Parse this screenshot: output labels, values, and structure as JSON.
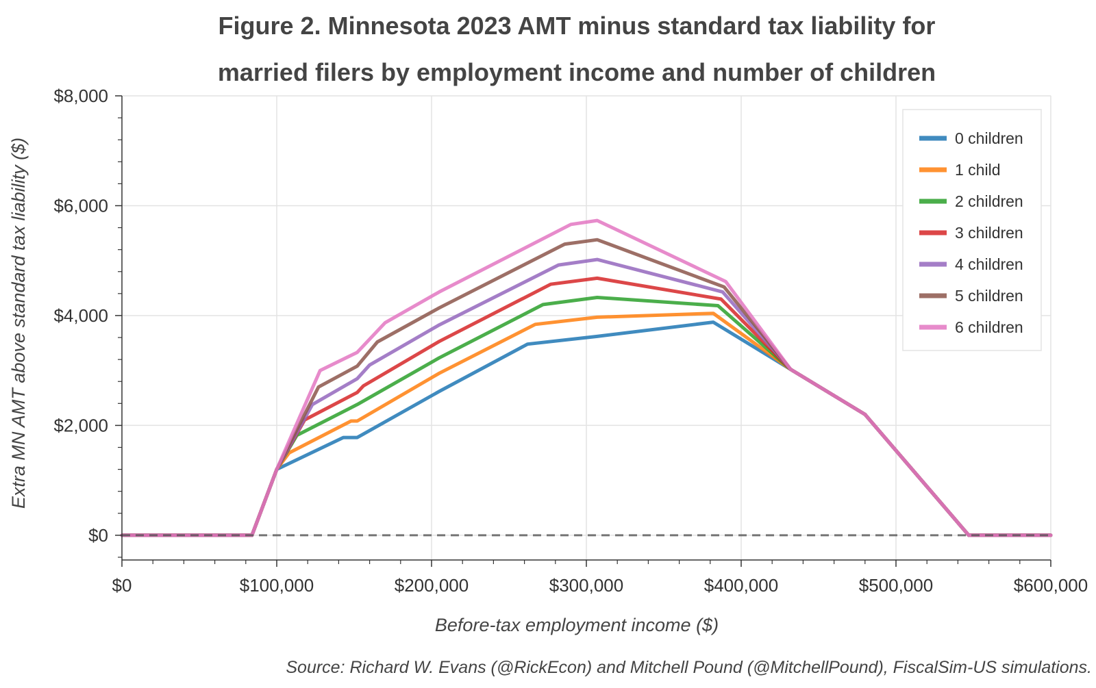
{
  "chart_data": {
    "type": "line",
    "title_lines": [
      "Figure 2. Minnesota 2023 AMT minus standard tax liability for",
      "married filers by employment income and number of children"
    ],
    "xlabel": "Before-tax employment income ($)",
    "ylabel": "Extra MN AMT above standard tax liability ($)",
    "source": "Source: Richard W. Evans (@RickEcon) and Mitchell Pound (@MitchellPound), FiscalSim-US simulations.",
    "xlim": [
      0,
      600000
    ],
    "ylim": [
      -450,
      8000
    ],
    "x_ticks": [
      0,
      100000,
      200000,
      300000,
      400000,
      500000,
      600000
    ],
    "x_tick_labels": [
      "$0",
      "$100,000",
      "$200,000",
      "$300,000",
      "$400,000",
      "$500,000",
      "$600,000"
    ],
    "y_ticks": [
      0,
      2000,
      4000,
      6000,
      8000
    ],
    "y_tick_labels": [
      "$0",
      "$2,000",
      "$4,000",
      "$6,000",
      "$8,000"
    ],
    "grid": true,
    "reference_line": {
      "y": 0,
      "style": "dashed",
      "color": "#555555"
    },
    "legend_position": "top-right",
    "series": [
      {
        "name": "0 children",
        "color": "#1f77b4",
        "points": [
          [
            0,
            0
          ],
          [
            84000,
            0
          ],
          [
            100000,
            1200
          ],
          [
            143000,
            1780
          ],
          [
            152000,
            1780
          ],
          [
            205000,
            2620
          ],
          [
            262000,
            3480
          ],
          [
            307000,
            3620
          ],
          [
            382000,
            3880
          ],
          [
            432000,
            3020
          ],
          [
            480000,
            2200
          ],
          [
            547000,
            0
          ],
          [
            600000,
            0
          ]
        ]
      },
      {
        "name": "1 child",
        "color": "#ff7f0e",
        "points": [
          [
            0,
            0
          ],
          [
            84000,
            0
          ],
          [
            100000,
            1200
          ],
          [
            108000,
            1500
          ],
          [
            148000,
            2080
          ],
          [
            152000,
            2080
          ],
          [
            205000,
            2950
          ],
          [
            267000,
            3840
          ],
          [
            307000,
            3970
          ],
          [
            382000,
            4040
          ],
          [
            432000,
            3020
          ],
          [
            480000,
            2200
          ],
          [
            547000,
            0
          ],
          [
            600000,
            0
          ]
        ]
      },
      {
        "name": "2 children",
        "color": "#2ca02c",
        "points": [
          [
            0,
            0
          ],
          [
            84000,
            0
          ],
          [
            100000,
            1200
          ],
          [
            113000,
            1820
          ],
          [
            152000,
            2380
          ],
          [
            205000,
            3230
          ],
          [
            272000,
            4200
          ],
          [
            307000,
            4330
          ],
          [
            385000,
            4180
          ],
          [
            432000,
            3020
          ],
          [
            480000,
            2200
          ],
          [
            547000,
            0
          ],
          [
            600000,
            0
          ]
        ]
      },
      {
        "name": "3 children",
        "color": "#d62728",
        "points": [
          [
            0,
            0
          ],
          [
            84000,
            0
          ],
          [
            100000,
            1200
          ],
          [
            118000,
            2100
          ],
          [
            152000,
            2600
          ],
          [
            156000,
            2720
          ],
          [
            205000,
            3530
          ],
          [
            277000,
            4570
          ],
          [
            307000,
            4680
          ],
          [
            387000,
            4300
          ],
          [
            432000,
            3020
          ],
          [
            480000,
            2200
          ],
          [
            547000,
            0
          ],
          [
            600000,
            0
          ]
        ]
      },
      {
        "name": "4 children",
        "color": "#9467bd",
        "points": [
          [
            0,
            0
          ],
          [
            84000,
            0
          ],
          [
            100000,
            1200
          ],
          [
            123000,
            2380
          ],
          [
            152000,
            2850
          ],
          [
            160000,
            3100
          ],
          [
            205000,
            3830
          ],
          [
            282000,
            4920
          ],
          [
            307000,
            5020
          ],
          [
            388000,
            4430
          ],
          [
            432000,
            3020
          ],
          [
            480000,
            2200
          ],
          [
            547000,
            0
          ],
          [
            600000,
            0
          ]
        ]
      },
      {
        "name": "5 children",
        "color": "#8c564b",
        "points": [
          [
            0,
            0
          ],
          [
            84000,
            0
          ],
          [
            100000,
            1200
          ],
          [
            127000,
            2700
          ],
          [
            152000,
            3080
          ],
          [
            165000,
            3520
          ],
          [
            205000,
            4140
          ],
          [
            286000,
            5300
          ],
          [
            307000,
            5380
          ],
          [
            389000,
            4520
          ],
          [
            432000,
            3020
          ],
          [
            480000,
            2200
          ],
          [
            547000,
            0
          ],
          [
            600000,
            0
          ]
        ]
      },
      {
        "name": "6 children",
        "color": "#e377c2",
        "points": [
          [
            0,
            0
          ],
          [
            84000,
            0
          ],
          [
            100000,
            1200
          ],
          [
            128000,
            3000
          ],
          [
            152000,
            3330
          ],
          [
            170000,
            3870
          ],
          [
            205000,
            4430
          ],
          [
            290000,
            5660
          ],
          [
            307000,
            5730
          ],
          [
            390000,
            4620
          ],
          [
            432000,
            3020
          ],
          [
            480000,
            2200
          ],
          [
            547000,
            0
          ],
          [
            600000,
            0
          ]
        ]
      }
    ]
  }
}
